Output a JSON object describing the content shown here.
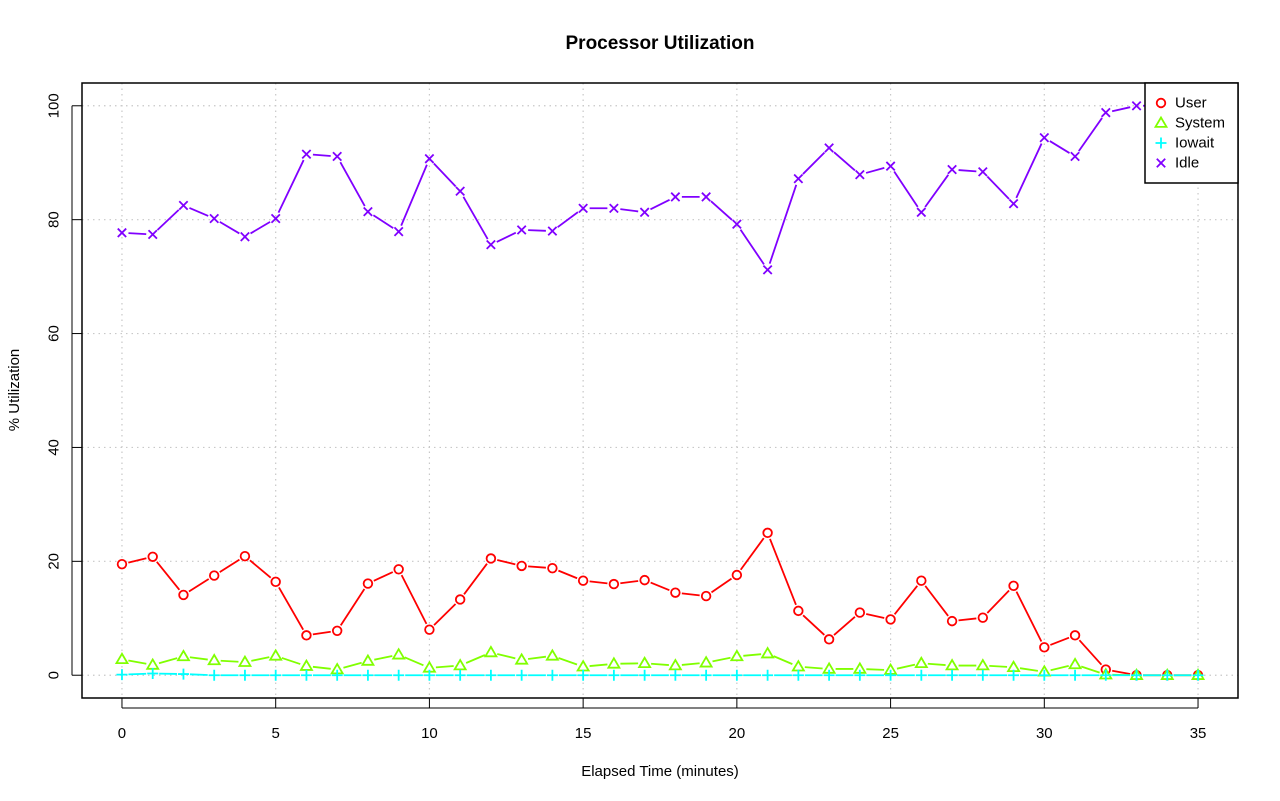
{
  "chart_data": {
    "type": "line",
    "title": "Processor Utilization",
    "xlabel": "Elapsed Time (minutes)",
    "ylabel": "% Utilization",
    "xlim": [
      -1.3,
      36.3
    ],
    "ylim": [
      -4,
      104
    ],
    "xticks": [
      0,
      5,
      10,
      15,
      20,
      25,
      30,
      35
    ],
    "yticks": [
      0,
      20,
      40,
      60,
      80,
      100
    ],
    "grid": true,
    "legend_position": "top-right",
    "x": [
      0,
      1,
      2,
      3,
      4,
      5,
      6,
      7,
      8,
      9,
      10,
      11,
      12,
      13,
      14,
      15,
      16,
      17,
      18,
      19,
      20,
      21,
      22,
      23,
      24,
      25,
      26,
      27,
      28,
      29,
      30,
      31,
      32,
      33,
      34,
      35
    ],
    "series": [
      {
        "name": "User",
        "color": "#ff0000",
        "marker": "circle",
        "values": [
          19.5,
          20.8,
          14.1,
          17.5,
          20.9,
          16.4,
          7.0,
          7.8,
          16.1,
          18.6,
          8.0,
          13.3,
          20.5,
          19.2,
          18.8,
          16.6,
          16.0,
          16.7,
          14.5,
          13.9,
          17.6,
          25.0,
          11.3,
          6.3,
          11.0,
          9.8,
          16.6,
          9.5,
          10.1,
          15.7,
          4.9,
          7.0,
          1.0,
          0.0,
          0.0,
          0.0
        ]
      },
      {
        "name": "System",
        "color": "#80ff00",
        "marker": "triangle",
        "values": [
          2.8,
          1.8,
          3.3,
          2.6,
          2.3,
          3.4,
          1.6,
          1.0,
          2.5,
          3.6,
          1.3,
          1.7,
          4.0,
          2.7,
          3.4,
          1.5,
          2.0,
          2.1,
          1.7,
          2.2,
          3.3,
          3.8,
          1.5,
          1.1,
          1.1,
          0.9,
          2.1,
          1.7,
          1.7,
          1.4,
          0.6,
          1.9,
          0.1,
          0.0,
          0.0,
          0.0
        ]
      },
      {
        "name": "Iowait",
        "color": "#00ffff",
        "marker": "plus",
        "values": [
          0.1,
          0.3,
          0.2,
          0.0,
          0.0,
          0.0,
          0.0,
          0.0,
          0.0,
          0.0,
          0.0,
          0.0,
          0.0,
          0.0,
          0.0,
          0.0,
          0.0,
          0.0,
          0.0,
          0.0,
          0.0,
          0.0,
          0.0,
          0.0,
          0.0,
          0.0,
          0.0,
          0.0,
          0.0,
          0.0,
          0.0,
          0.0,
          0.0,
          0.0,
          0.0,
          0.0
        ]
      },
      {
        "name": "Idle",
        "color": "#8000ff",
        "marker": "x",
        "values": [
          77.7,
          77.4,
          82.5,
          80.2,
          77.0,
          80.2,
          91.5,
          91.1,
          81.4,
          77.9,
          90.7,
          85.0,
          75.6,
          78.2,
          78.0,
          82.0,
          82.0,
          81.3,
          84.0,
          84.0,
          79.2,
          71.2,
          87.2,
          92.6,
          87.9,
          89.4,
          81.3,
          88.8,
          88.4,
          82.8,
          94.4,
          91.1,
          98.8,
          100.0,
          100.0,
          100.0
        ]
      }
    ]
  }
}
